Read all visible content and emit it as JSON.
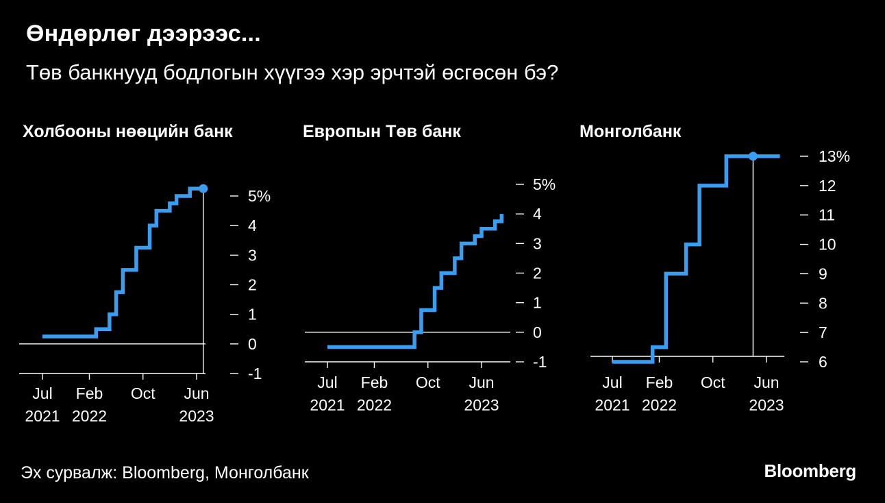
{
  "header": {
    "title": "Өндөрлөг дээрээс...",
    "subtitle": "Төв банкнууд бодлогын хүүгээ хэр эрчтэй өсгөсөн бэ?"
  },
  "footer": {
    "source": "Эх сурвалж: Bloomberg, Монголбанк",
    "brand": "Bloomberg"
  },
  "colors": {
    "line": "#3b9df0",
    "background": "#000000",
    "text": "#ffffff"
  },
  "chart_data": [
    {
      "type": "line",
      "step": true,
      "title": "Холбооны нөөцийн банк",
      "y_ticks": [
        "-1",
        "0",
        "1",
        "2",
        "3",
        "4",
        "5%"
      ],
      "y_tick_values": [
        -1,
        0,
        1,
        2,
        3,
        4,
        5
      ],
      "ylim": [
        -1,
        5.5
      ],
      "x_ticks": [
        {
          "label": [
            "Jul",
            "2021"
          ],
          "date": "2021-07"
        },
        {
          "label": [
            "Feb",
            "2022"
          ],
          "date": "2022-02"
        },
        {
          "label": [
            "Oct",
            ""
          ],
          "date": "2022-10"
        },
        {
          "label": [
            "Jun",
            "2023"
          ],
          "date": "2023-06"
        }
      ],
      "series": [
        {
          "x": [
            "2021-07",
            "2022-03",
            "2022-05",
            "2022-06",
            "2022-07",
            "2022-09",
            "2022-11",
            "2022-12",
            "2023-02",
            "2023-03",
            "2023-05",
            "2023-07"
          ],
          "y": [
            0.25,
            0.5,
            1.0,
            1.75,
            2.5,
            3.25,
            4.0,
            4.5,
            4.75,
            5.0,
            5.25,
            5.25
          ]
        }
      ]
    },
    {
      "type": "line",
      "step": true,
      "title": "Европын Төв банк",
      "y_ticks": [
        "-1",
        "0",
        "1",
        "2",
        "3",
        "4",
        "5%"
      ],
      "y_tick_values": [
        -1,
        0,
        1,
        2,
        3,
        4,
        5
      ],
      "ylim": [
        -1,
        5.5
      ],
      "x_ticks": [
        {
          "label": [
            "Jul",
            "2021"
          ],
          "date": "2021-07"
        },
        {
          "label": [
            "Feb",
            "2022"
          ],
          "date": "2022-02"
        },
        {
          "label": [
            "Oct",
            ""
          ],
          "date": "2022-10"
        },
        {
          "label": [
            "Jun",
            "2023"
          ],
          "date": "2023-06"
        }
      ],
      "series": [
        {
          "x": [
            "2021-07",
            "2022-08",
            "2022-09",
            "2022-11",
            "2022-12",
            "2023-02",
            "2023-03",
            "2023-05",
            "2023-06",
            "2023-08",
            "2023-09"
          ],
          "y": [
            -0.5,
            0.0,
            0.75,
            1.5,
            2.0,
            2.5,
            3.0,
            3.25,
            3.5,
            3.75,
            4.0
          ]
        }
      ]
    },
    {
      "type": "line",
      "step": true,
      "title": "Монголбанк",
      "y_ticks": [
        "6",
        "7",
        "8",
        "9",
        "10",
        "11",
        "12",
        "13%"
      ],
      "y_tick_values": [
        6,
        7,
        8,
        9,
        10,
        11,
        12,
        13
      ],
      "ylim": [
        6,
        13.3
      ],
      "x_ticks": [
        {
          "label": [
            "Jul",
            "2021"
          ],
          "date": "2021-07"
        },
        {
          "label": [
            "Feb",
            "2022"
          ],
          "date": "2022-02"
        },
        {
          "label": [
            "Oct",
            ""
          ],
          "date": "2022-10"
        },
        {
          "label": [
            "Jun",
            "2023"
          ],
          "date": "2023-06"
        }
      ],
      "series": [
        {
          "x": [
            "2021-07",
            "2022-01",
            "2022-03",
            "2022-06",
            "2022-08",
            "2022-12",
            "2023-08"
          ],
          "y": [
            6.0,
            6.5,
            9.0,
            10.0,
            12.0,
            13.0,
            13.0
          ]
        }
      ]
    }
  ]
}
